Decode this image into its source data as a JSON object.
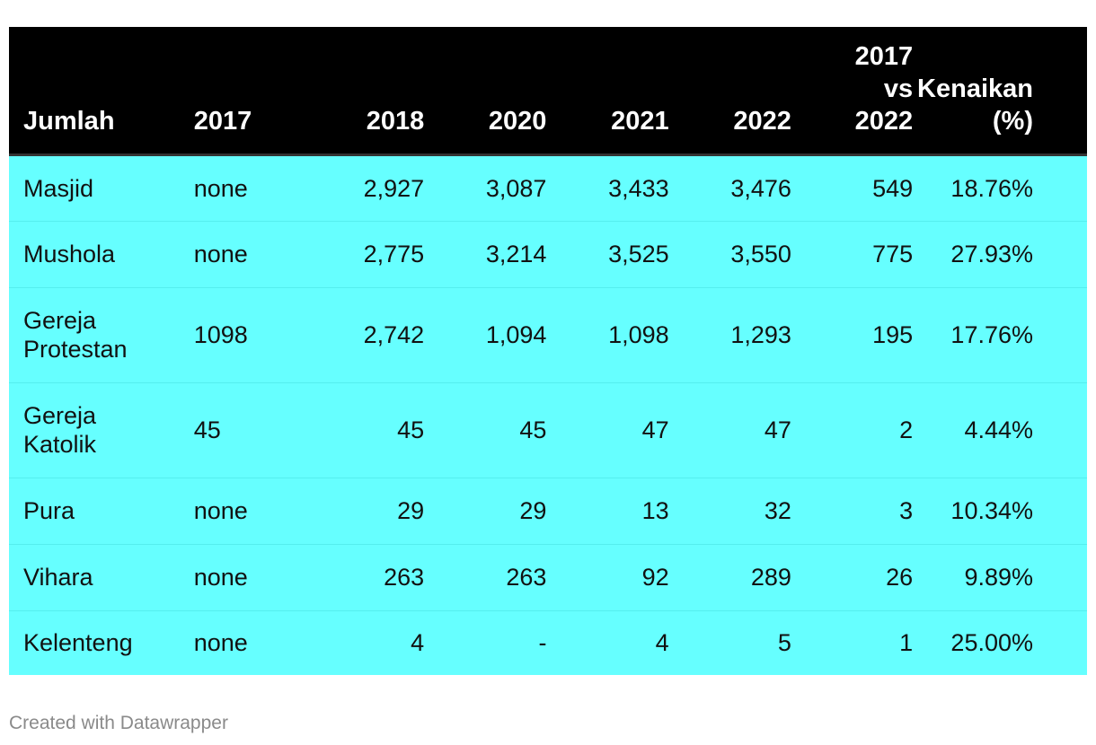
{
  "chart_data": {
    "type": "table",
    "columns": [
      "Jumlah",
      "2017",
      "2018",
      "2020",
      "2021",
      "2022",
      "2017 vs 2022",
      "Kenaikan (%)"
    ],
    "header_lines": [
      [
        "Jumlah"
      ],
      [
        "2017"
      ],
      [
        "2018"
      ],
      [
        "2020"
      ],
      [
        "2021"
      ],
      [
        "2022"
      ],
      [
        "2017",
        "vs",
        "2022"
      ],
      [
        "Kenaikan",
        "(%)"
      ]
    ],
    "rows": [
      {
        "label_lines": [
          "Masjid"
        ],
        "cells": [
          "none",
          "2,927",
          "3,087",
          "3,433",
          "3,476",
          "549",
          "18.76%"
        ]
      },
      {
        "label_lines": [
          "Mushola"
        ],
        "cells": [
          "none",
          "2,775",
          "3,214",
          "3,525",
          "3,550",
          "775",
          "27.93%"
        ]
      },
      {
        "label_lines": [
          "Gereja",
          "Protestan"
        ],
        "cells": [
          "1098",
          "2,742",
          "1,094",
          "1,098",
          "1,293",
          "195",
          "17.76%"
        ]
      },
      {
        "label_lines": [
          "Gereja",
          "Katolik"
        ],
        "cells": [
          "45",
          "45",
          "45",
          "47",
          "47",
          "2",
          "4.44%"
        ]
      },
      {
        "label_lines": [
          "Pura"
        ],
        "cells": [
          "none",
          "29",
          "29",
          "13",
          "32",
          "3",
          "10.34%"
        ]
      },
      {
        "label_lines": [
          "Vihara"
        ],
        "cells": [
          "none",
          "263",
          "263",
          "92",
          "289",
          "26",
          "9.89%"
        ]
      },
      {
        "label_lines": [
          "Kelenteng"
        ],
        "cells": [
          "none",
          "4",
          "-",
          "4",
          "5",
          "1",
          "25.00%"
        ]
      }
    ]
  },
  "colors": {
    "header_bg": "#000000",
    "row_bg": "#66ffff"
  },
  "footer": {
    "credit": "Created with Datawrapper"
  }
}
